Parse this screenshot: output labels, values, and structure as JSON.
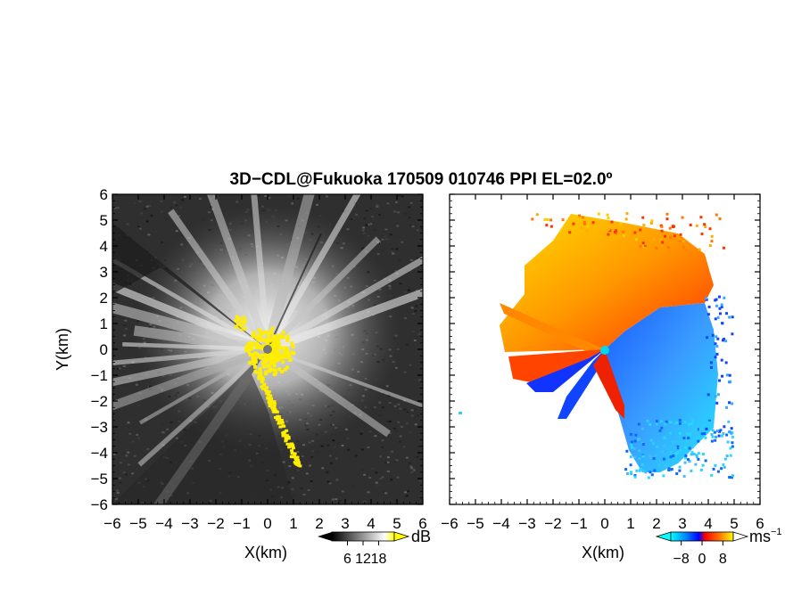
{
  "chart_data": {
    "title": "3D−CDL@Fukuoka 170509 010746 PPI EL=02.0º",
    "panels": [
      {
        "type": "heatmap",
        "xlabel": "X(km)",
        "ylabel": "Y(km)",
        "xlim": [
          -6,
          6
        ],
        "ylim": [
          -6,
          6
        ],
        "xticks": [
          "−6",
          "−5",
          "−4",
          "−3",
          "−2",
          "−1",
          "0",
          "1",
          "2",
          "3",
          "4",
          "5",
          "6"
        ],
        "yticks": [
          "6",
          "5",
          "4",
          "3",
          "2",
          "1",
          "0",
          "−1",
          "−2",
          "−3",
          "−4",
          "−5",
          "−6"
        ],
        "colorbar": {
          "unit": "dB",
          "ticks": [
            "6",
            "12",
            "18"
          ],
          "tick_values": [
            6,
            12,
            18
          ],
          "range": [
            0,
            24
          ],
          "colors": [
            "#000000",
            "#ffffff",
            "#ffff00"
          ]
        }
      },
      {
        "type": "heatmap",
        "xlabel": "X(km)",
        "ylabel": "",
        "xlim": [
          -6,
          6
        ],
        "ylim": [
          -6,
          6
        ],
        "xticks": [
          "−6",
          "−5",
          "−4",
          "−3",
          "−2",
          "−1",
          "0",
          "1",
          "2",
          "3",
          "4",
          "5",
          "6"
        ],
        "yticks": [],
        "colorbar": {
          "unit": "ms",
          "unit_exponent": "−1",
          "ticks": [
            "−8",
            "0",
            "8"
          ],
          "tick_values": [
            -8,
            0,
            8
          ],
          "range": [
            -12,
            12
          ],
          "colors": [
            "#00ffff",
            "#0000ff",
            "#ff0000",
            "#ffff00"
          ]
        }
      }
    ]
  }
}
